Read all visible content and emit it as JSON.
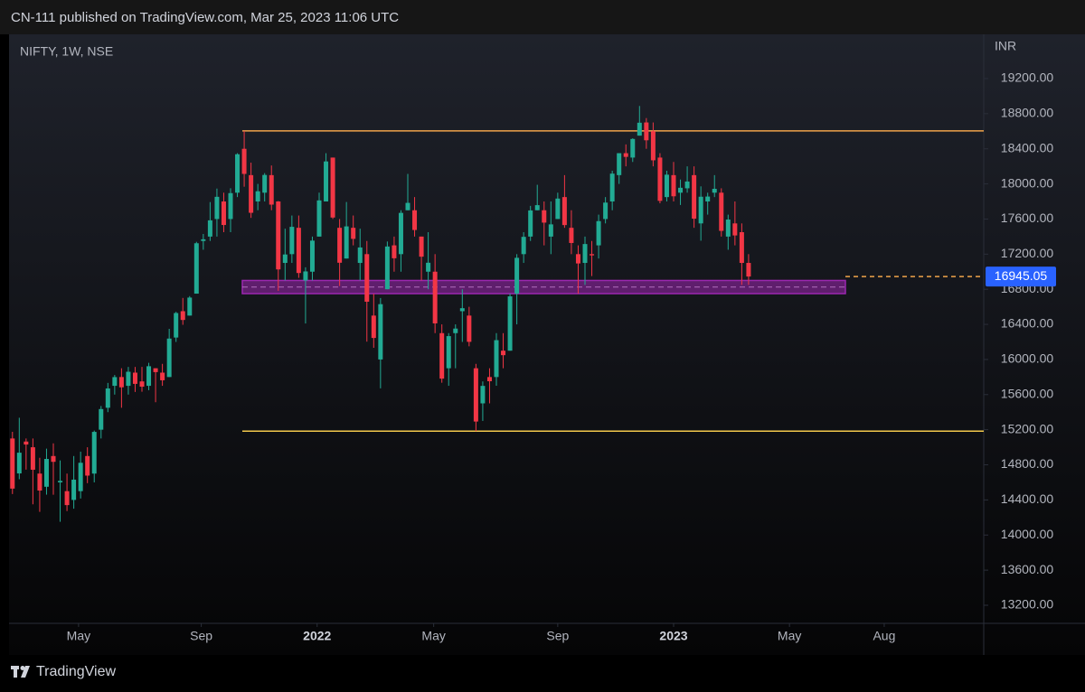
{
  "chart_data": {
    "type": "candlestick",
    "header": "CN-111 published on TradingView.com, Mar 25, 2023 11:06 UTC",
    "symbol": "NIFTY, 1W, NSE",
    "currency": "INR",
    "brand": "TradingView",
    "up_color": "#22ab94",
    "down_color": "#f23645",
    "ohlc": {
      "open": [
        15100,
        14702,
        15065,
        15000,
        14700,
        14550,
        14900,
        14600,
        14500,
        14400,
        14500,
        14900,
        14700,
        15200,
        15450,
        15700,
        15800,
        15700,
        15850,
        15750,
        15700,
        15900,
        15850,
        15800,
        16250,
        16550,
        16500,
        16750,
        17350,
        17400,
        17600,
        17800,
        17600,
        17900,
        18400,
        18100,
        17800,
        17900,
        18100,
        17800,
        17100,
        17200,
        17500,
        16900,
        17000,
        17400,
        17800,
        18300,
        17500,
        17150,
        17500,
        17100,
        17200,
        16500,
        16000,
        16800,
        17300,
        17200,
        17700,
        17700,
        17400,
        17000,
        17000,
        16300,
        15900,
        16300,
        16550,
        16500,
        15900,
        15500,
        15800,
        15800,
        16100,
        16100,
        16750,
        17200,
        17400,
        17700,
        17700,
        17400,
        17600,
        17850,
        17500,
        17200,
        17100,
        17200,
        17300,
        17600,
        17800,
        18100,
        18350,
        18300,
        18550,
        18700,
        18600,
        18300,
        17850,
        18100,
        17900,
        17950,
        18100,
        17550,
        17800,
        17900,
        17900,
        17400,
        17550,
        17450,
        17100
      ],
      "high": [
        15176,
        15336,
        15100,
        15100,
        14880,
        14984,
        15044,
        14850,
        14700,
        14900,
        14950,
        15000,
        15190,
        15470,
        15733,
        15823,
        15900,
        15915,
        15915,
        15915,
        15962,
        15900,
        15950,
        16349,
        16543,
        16701,
        16722,
        17340,
        17430,
        17793,
        17947,
        17900,
        17950,
        18350,
        18604,
        18242,
        18000,
        18123,
        18210,
        17805,
        17490,
        17640,
        17640,
        17050,
        17400,
        17900,
        18350,
        18300,
        17600,
        17794,
        17640,
        17490,
        17350,
        16750,
        16700,
        17344,
        17400,
        17700,
        18114,
        17850,
        17400,
        17450,
        17200,
        16400,
        16300,
        16400,
        16800,
        16600,
        15950,
        15750,
        15900,
        16300,
        16300,
        16750,
        17200,
        17450,
        17750,
        17990,
        17800,
        17800,
        17900,
        18100,
        17700,
        17300,
        17400,
        17350,
        17650,
        17850,
        18150,
        18350,
        18450,
        18520,
        18888,
        18750,
        18700,
        18350,
        18150,
        18250,
        18050,
        18200,
        18200,
        17972,
        17900,
        18100,
        17950,
        17650,
        17800,
        17550,
        17200
      ],
      "low": [
        14467,
        14636,
        14745,
        14350,
        14264,
        14460,
        14459,
        14151,
        14273,
        14300,
        14416,
        14591,
        14600,
        15100,
        15400,
        15600,
        15450,
        15600,
        15630,
        15632,
        15650,
        15513,
        15700,
        15800,
        16200,
        16395,
        16500,
        16750,
        17250,
        17350,
        17400,
        17450,
        17450,
        17850,
        17968,
        17613,
        17700,
        17800,
        17700,
        16782,
        16900,
        17100,
        16930,
        16410,
        16900,
        17400,
        17800,
        17600,
        16837,
        17150,
        17300,
        16900,
        16203,
        16133,
        15671,
        16800,
        17000,
        17000,
        17700,
        17400,
        16900,
        16800,
        16300,
        15735,
        15700,
        15900,
        16200,
        16150,
        15183,
        15300,
        15500,
        15700,
        15900,
        16100,
        16400,
        17100,
        17350,
        17700,
        17300,
        17200,
        17600,
        17500,
        17200,
        16750,
        16850,
        16950,
        17150,
        17550,
        17700,
        18000,
        18200,
        18250,
        18550,
        18400,
        18200,
        17779,
        17800,
        17800,
        17760,
        17900,
        17500,
        17353,
        17650,
        17850,
        17400,
        17250,
        17300,
        16850,
        16850
      ],
      "close": [
        14529,
        14938,
        15031,
        14744,
        14507,
        14867,
        14834,
        14617,
        14341,
        14631,
        14823,
        14677,
        15175,
        15435,
        15670,
        15799,
        15683,
        15860,
        15722,
        15690,
        15923,
        15856,
        15763,
        16238,
        16529,
        16450,
        16705,
        17324,
        17369,
        17585,
        17853,
        17532,
        17895,
        18338,
        18114,
        17671,
        17916,
        18102,
        17764,
        17026,
        17196,
        17511,
        16985,
        17003,
        17354,
        17812,
        18256,
        17617,
        17102,
        17516,
        17374,
        17276,
        16658,
        16245,
        16630,
        17287,
        17153,
        17670,
        17784,
        17475,
        17171,
        17102,
        16411,
        15782,
        16266,
        16352,
        16584,
        16201,
        15293,
        15699,
        15752,
        16220,
        16049,
        16719,
        17158,
        17397,
        17698,
        17758,
        17559,
        17539,
        17833,
        17531,
        17327,
        17094,
        17315,
        17186,
        17576,
        17787,
        18117,
        18350,
        18308,
        18512,
        18697,
        18497,
        18269,
        17807,
        18105,
        17859,
        17956,
        18027,
        17604,
        17854,
        17856,
        17944,
        17465,
        17594,
        17413,
        17100,
        16945.05
      ]
    },
    "xlim": [
      -0.5,
      142.5
    ],
    "xticks": [
      {
        "value": 9.7,
        "label": "May"
      },
      {
        "value": 27.7,
        "label": "Sep"
      },
      {
        "value": 44.7,
        "label": "2022"
      },
      {
        "value": 61.8,
        "label": "May"
      },
      {
        "value": 80.0,
        "label": "Sep"
      },
      {
        "value": 97.0,
        "label": "2023"
      },
      {
        "value": 114.0,
        "label": "May"
      },
      {
        "value": 127.9,
        "label": "Aug"
      }
    ],
    "ylim": [
      12994,
      19704
    ],
    "yticks": [
      {
        "value": 13200,
        "label": "13200.00"
      },
      {
        "value": 13600,
        "label": "13600.00"
      },
      {
        "value": 14000,
        "label": "14000.00"
      },
      {
        "value": 14400,
        "label": "14400.00"
      },
      {
        "value": 14800,
        "label": "14800.00"
      },
      {
        "value": 15200,
        "label": "15200.00"
      },
      {
        "value": 15600,
        "label": "15600.00"
      },
      {
        "value": 16000,
        "label": "16000.00"
      },
      {
        "value": 16400,
        "label": "16400.00"
      },
      {
        "value": 16800,
        "label": "16800.00"
      },
      {
        "value": 17200,
        "label": "17200.00"
      },
      {
        "value": 17600,
        "label": "17600.00"
      },
      {
        "value": 18000,
        "label": "18000.00"
      },
      {
        "value": 18400,
        "label": "18400.00"
      },
      {
        "value": 18800,
        "label": "18800.00"
      },
      {
        "value": 19200,
        "label": "19200.00"
      }
    ],
    "resistance": 18604,
    "resistance_color": "#f0a34a",
    "support": 15183,
    "support_color": "#f2c94c",
    "zone": [
      16750,
      16900
    ],
    "zone_color": "#9c27b0"
  }
}
